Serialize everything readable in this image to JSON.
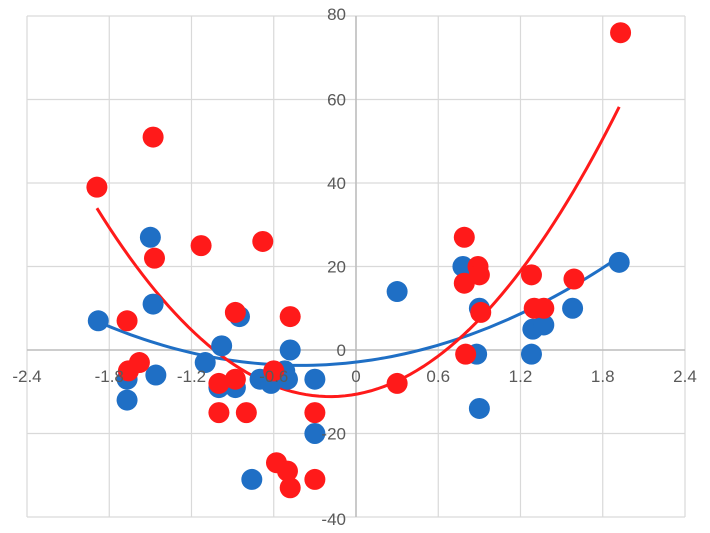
{
  "chart_data": {
    "type": "scatter",
    "title": "",
    "xlabel": "",
    "ylabel": "",
    "xlim": [
      -2.4,
      2.4
    ],
    "ylim": [
      -40,
      80
    ],
    "x_ticks": [
      -2.4,
      -1.8,
      -1.2,
      -0.6,
      0,
      0.6,
      1.2,
      1.8,
      2.4
    ],
    "x_tick_labels": [
      "-2.4",
      "-1.8",
      "-1.2",
      "-0.6",
      "0",
      "0.6",
      "1.2",
      "1.8",
      "2.4"
    ],
    "y_ticks": [
      -40,
      -20,
      0,
      20,
      40,
      60,
      80
    ],
    "y_tick_labels": [
      "-40",
      "-20",
      "0",
      "20",
      "40",
      "60",
      "80"
    ],
    "grid": true,
    "legend": "none",
    "colors": {
      "blue": "#1f6fc5",
      "red": "#ff1a1a",
      "grid": "#d9d9d9",
      "axis": "#bfbfbf"
    },
    "series": [
      {
        "color": "#1f6fc5",
        "x": [
          -1.88,
          -1.67,
          -1.67,
          -1.5,
          -1.48,
          -1.46,
          -1.1,
          -1.0,
          -0.98,
          -0.88,
          -0.85,
          -0.76,
          -0.7,
          -0.62,
          -0.52,
          -0.5,
          -0.48,
          -0.3,
          -0.3,
          0.3,
          0.78,
          0.88,
          0.9,
          0.9,
          1.28,
          1.29,
          1.37,
          1.58,
          1.92
        ],
        "y": [
          7,
          -7,
          -12,
          27,
          11,
          -6,
          -3,
          -9,
          1,
          -9,
          8,
          -31,
          -7,
          -8,
          -5,
          -7,
          0,
          -7,
          -20,
          14,
          20,
          -1,
          -14,
          10,
          -1,
          5,
          6,
          10,
          21
        ]
      },
      {
        "color": "#ff1a1a",
        "x": [
          -1.89,
          -1.67,
          -1.66,
          -1.58,
          -1.48,
          -1.47,
          -1.13,
          -1.0,
          -1.0,
          -0.88,
          -0.88,
          -0.8,
          -0.68,
          -0.6,
          -0.58,
          -0.5,
          -0.48,
          -0.48,
          -0.3,
          -0.3,
          0.3,
          0.79,
          0.79,
          0.8,
          0.89,
          0.9,
          0.91,
          1.28,
          1.3,
          1.37,
          1.59,
          1.93
        ],
        "y": [
          39,
          7,
          -5,
          -3,
          51,
          22,
          25,
          -8,
          -15,
          -7,
          9,
          -15,
          26,
          -5,
          -27,
          -29,
          -33,
          8,
          -15,
          -31,
          -8,
          27,
          16,
          -1,
          20,
          18,
          9,
          18,
          10,
          10,
          17,
          76
        ]
      }
    ],
    "trendlines": [
      {
        "type": "poly2",
        "color": "#1f6fc5",
        "x_range": [
          -1.88,
          1.92
        ],
        "coefficients": [
          -2.9,
          3.9,
          4.8
        ]
      },
      {
        "type": "poly2",
        "color": "#ff1a1a",
        "x_range": [
          -1.89,
          1.92
        ],
        "coefficients": [
          -10.6,
          5.9,
          15.6
        ]
      }
    ]
  }
}
